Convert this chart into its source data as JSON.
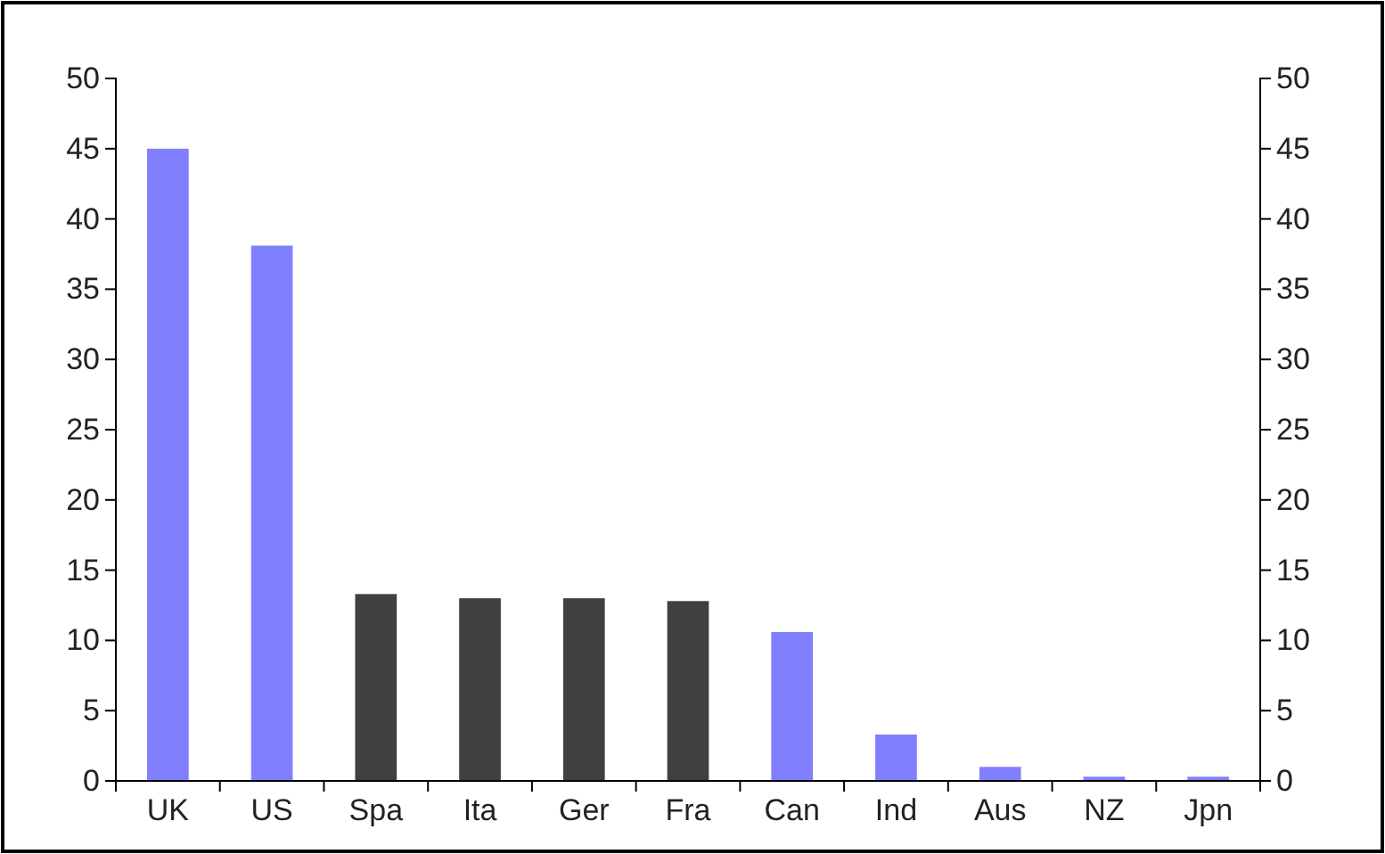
{
  "chart_data": {
    "type": "bar",
    "categories": [
      "UK",
      "US",
      "Spa",
      "Ita",
      "Ger",
      "Fra",
      "Can",
      "Ind",
      "Aus",
      "NZ",
      "Jpn"
    ],
    "values": [
      45,
      38.1,
      13.3,
      13,
      13,
      12.8,
      10.6,
      3.3,
      1,
      0.3,
      0.3
    ],
    "colors": [
      "#8080ff",
      "#8080ff",
      "#404040",
      "#404040",
      "#404040",
      "#404040",
      "#8080ff",
      "#8080ff",
      "#8080ff",
      "#8080ff",
      "#8080ff"
    ],
    "ylim": [
      0,
      50
    ],
    "yticks": [
      0,
      5,
      10,
      15,
      20,
      25,
      30,
      35,
      40,
      45,
      50
    ],
    "y2lim": [
      0,
      50
    ],
    "y2ticks": [
      0,
      5,
      10,
      15,
      20,
      25,
      30,
      35,
      40,
      45,
      50
    ]
  }
}
